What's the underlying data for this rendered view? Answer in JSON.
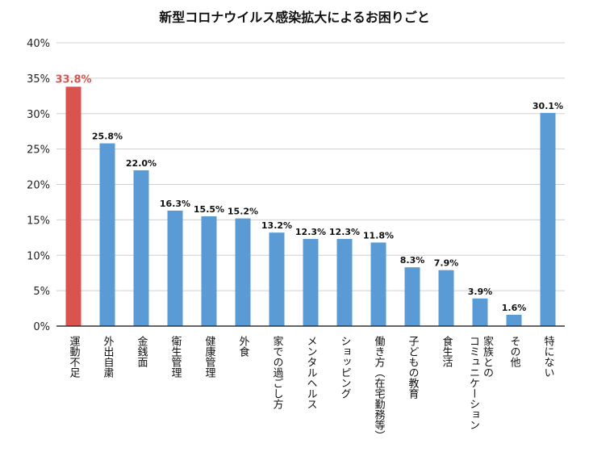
{
  "chart_data": {
    "type": "bar",
    "title": "新型コロナウイルス感染拡大によるお困りごと",
    "xlabel": "",
    "ylabel": "",
    "ylim": [
      0,
      40
    ],
    "yticks": [
      "0%",
      "5%",
      "10%",
      "15%",
      "20%",
      "25%",
      "30%",
      "35%",
      "40%"
    ],
    "grid": true,
    "categories": [
      "運動不足",
      "外出自粛",
      "金銭面",
      "衛生管理",
      "健康管理",
      "外食",
      "家での過ごし方",
      "メンタルヘルス",
      "ショッピング",
      "働き方（在宅勤務等）",
      "子どもの教育",
      "食生活",
      "家族とのコミュニケーション",
      "その他",
      "特にない"
    ],
    "category_lines": [
      [
        "運動不足"
      ],
      [
        "外出自粛"
      ],
      [
        "金銭面"
      ],
      [
        "衛生管理"
      ],
      [
        "健康管理"
      ],
      [
        "外食"
      ],
      [
        "家での過ごし方"
      ],
      [
        "メンタルヘルス"
      ],
      [
        "ショッピング"
      ],
      [
        "働き方（在宅勤務等）"
      ],
      [
        "子どもの教育"
      ],
      [
        "食生活"
      ],
      [
        "家族との",
        "コミュニケーション"
      ],
      [
        "その他"
      ],
      [
        "特にない"
      ]
    ],
    "values": [
      33.8,
      25.8,
      22.0,
      16.3,
      15.5,
      15.2,
      13.2,
      12.3,
      12.3,
      11.8,
      8.3,
      7.9,
      3.9,
      1.6,
      30.1
    ],
    "value_labels": [
      "33.8%",
      "25.8%",
      "22.0%",
      "16.3%",
      "15.5%",
      "15.2%",
      "13.2%",
      "12.3%",
      "12.3%",
      "11.8%",
      "8.3%",
      "7.9%",
      "3.9%",
      "1.6%",
      "30.1%"
    ],
    "colors": {
      "default_bar": "#5b9bd5",
      "highlight_bar": "#d9534f",
      "highlight_label": "#d9534f",
      "grid": "#d0d0d0",
      "axis": "#333333"
    },
    "highlight_index": 0
  }
}
